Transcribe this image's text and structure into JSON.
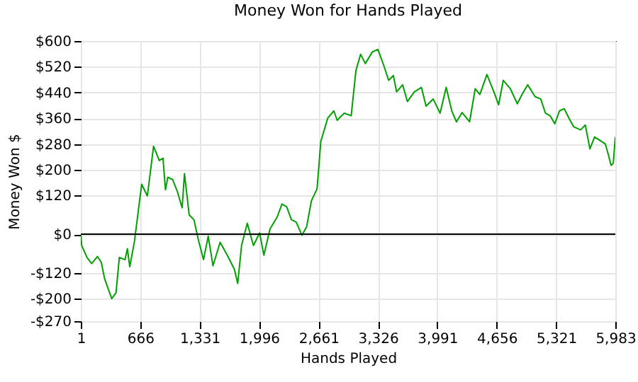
{
  "chart_data": {
    "type": "line",
    "title": "Money Won for Hands Played",
    "xlabel": "Hands Played",
    "ylabel": "Money Won $",
    "x": [
      1,
      11,
      70,
      123,
      187,
      230,
      267,
      347,
      395,
      432,
      496,
      522,
      549,
      602,
      682,
      746,
      815,
      879,
      921,
      948,
      975,
      1028,
      1081,
      1135,
      1161,
      1214,
      1267,
      1320,
      1374,
      1427,
      1480,
      1560,
      1640,
      1720,
      1757,
      1800,
      1864,
      1933,
      2002,
      2050,
      2118,
      2198,
      2252,
      2305,
      2358,
      2411,
      2475,
      2528,
      2582,
      2645,
      2687,
      2765,
      2833,
      2870,
      2949,
      3027,
      3080,
      3132,
      3185,
      3263,
      3326,
      3394,
      3446,
      3499,
      3535,
      3603,
      3656,
      3734,
      3813,
      3865,
      3944,
      4022,
      4090,
      4153,
      4205,
      4268,
      4352,
      4415,
      4467,
      4546,
      4624,
      4677,
      4729,
      4808,
      4886,
      4939,
      5002,
      5086,
      5148,
      5201,
      5253,
      5306,
      5358,
      5411,
      5463,
      5516,
      5594,
      5647,
      5699,
      5751,
      5819,
      5872,
      5909,
      5935,
      5960,
      5983
    ],
    "series": [
      {
        "color": "#00a000",
        "values": [
          0,
          -35,
          -72,
          -91,
          -69,
          -87,
          -138,
          -200,
          -182,
          -72,
          -79,
          -45,
          -101,
          -21,
          155,
          119,
          273,
          229,
          236,
          138,
          177,
          170,
          133,
          82,
          188,
          60,
          45,
          -21,
          -79,
          -6,
          -98,
          -25,
          -65,
          -109,
          -153,
          -35,
          34,
          -35,
          4,
          -65,
          16,
          53,
          94,
          85,
          45,
          38,
          -3,
          23,
          104,
          141,
          288,
          361,
          383,
          354,
          376,
          368,
          508,
          559,
          530,
          566,
          574,
          522,
          478,
          493,
          442,
          464,
          412,
          442,
          456,
          398,
          420,
          376,
          456,
          383,
          349,
          378,
          349,
          452,
          434,
          496,
          442,
          402,
          478,
          452,
          405,
          434,
          464,
          427,
          420,
          376,
          368,
          343,
          383,
          390,
          361,
          334,
          324,
          339,
          265,
          302,
          290,
          280,
          243,
          214,
          220,
          302
        ]
      }
    ],
    "xlim": [
      1,
      5983
    ],
    "xticks": [
      1,
      {
        "value": 666,
        "label": "666"
      },
      {
        "value": 1331,
        "label": "1,331"
      },
      {
        "value": 1996,
        "label": "1,996"
      },
      {
        "value": 2661,
        "label": "2,661"
      },
      {
        "value": 3326,
        "label": "3,326"
      },
      {
        "value": 3991,
        "label": "3,991"
      },
      {
        "value": 4656,
        "label": "4,656"
      },
      {
        "value": 5321,
        "label": "5,321"
      },
      {
        "value": 5983,
        "label": "5,983"
      }
    ],
    "ylim": [
      -270,
      600
    ],
    "yticks": [
      {
        "value": -270,
        "label": "-$270"
      },
      {
        "value": -200,
        "label": "-$200"
      },
      {
        "value": -120,
        "label": "-$120"
      },
      {
        "value": 0,
        "label": "$0"
      },
      {
        "value": 120,
        "label": "$120"
      },
      {
        "value": 200,
        "label": "$200"
      },
      {
        "value": 280,
        "label": "$280"
      },
      {
        "value": 360,
        "label": "$360"
      },
      {
        "value": 440,
        "label": "$440"
      },
      {
        "value": 520,
        "label": "$520"
      },
      {
        "value": 600,
        "label": "$600"
      }
    ],
    "grid": true,
    "legend": false,
    "marker": "none",
    "line_style": "solid",
    "ref_lines": [
      {
        "axis": "y",
        "value": 0,
        "color": "#000000"
      }
    ]
  }
}
